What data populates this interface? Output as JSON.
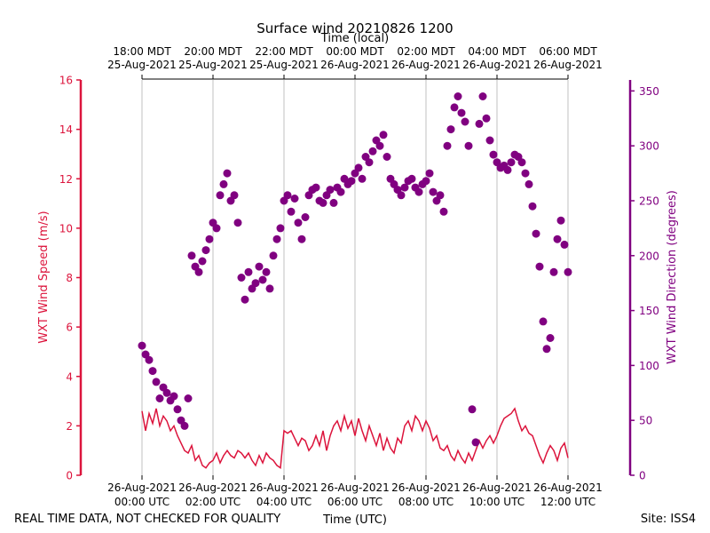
{
  "chart_data": {
    "type": "line+scatter",
    "title": "Surface wind 20210826 1200",
    "top_axis_label": "Time (local)",
    "bottom_axis_label": "Time (UTC)",
    "left_axis_label": "WXT Wind Speed (m/s)",
    "right_axis_label": "WXT Wind Direction (degrees)",
    "footer_left": "REAL TIME DATA, NOT CHECKED FOR QUALITY",
    "footer_right": "Site: ISS4",
    "x_range_hours": [
      0,
      12
    ],
    "ylim_left": [
      0,
      16
    ],
    "ylim_right": [
      0,
      360
    ],
    "left_ticks": [
      "0",
      "2",
      "4",
      "6",
      "8",
      "10",
      "12",
      "14",
      "16"
    ],
    "right_ticks": [
      "0",
      "50",
      "100",
      "150",
      "200",
      "250",
      "300",
      "350"
    ],
    "bottom_ticks": [
      {
        "hour": 0,
        "line1": "26-Aug-2021",
        "line2": "00:00 UTC"
      },
      {
        "hour": 2,
        "line1": "26-Aug-2021",
        "line2": "02:00 UTC"
      },
      {
        "hour": 4,
        "line1": "26-Aug-2021",
        "line2": "04:00 UTC"
      },
      {
        "hour": 6,
        "line1": "26-Aug-2021",
        "line2": "06:00 UTC"
      },
      {
        "hour": 8,
        "line1": "26-Aug-2021",
        "line2": "08:00 UTC"
      },
      {
        "hour": 10,
        "line1": "26-Aug-2021",
        "line2": "10:00 UTC"
      },
      {
        "hour": 12,
        "line1": "26-Aug-2021",
        "line2": "12:00 UTC"
      }
    ],
    "top_ticks": [
      {
        "hour": 0,
        "line1": "18:00 MDT",
        "line2": "25-Aug-2021"
      },
      {
        "hour": 2,
        "line1": "20:00 MDT",
        "line2": "25-Aug-2021"
      },
      {
        "hour": 4,
        "line1": "22:00 MDT",
        "line2": "25-Aug-2021"
      },
      {
        "hour": 6,
        "line1": "00:00 MDT",
        "line2": "26-Aug-2021"
      },
      {
        "hour": 8,
        "line1": "02:00 MDT",
        "line2": "26-Aug-2021"
      },
      {
        "hour": 10,
        "line1": "04:00 MDT",
        "line2": "26-Aug-2021"
      },
      {
        "hour": 12,
        "line1": "06:00 MDT",
        "line2": "26-Aug-2021"
      }
    ],
    "colors": {
      "speed": "#dc143c",
      "direction": "#800080",
      "grid": "#b0b0b0"
    },
    "series": [
      {
        "name": "WXT Wind Speed (m/s)",
        "axis": "left",
        "kind": "line",
        "x_hours": [
          0.0,
          0.1,
          0.2,
          0.3,
          0.4,
          0.5,
          0.6,
          0.7,
          0.8,
          0.9,
          1.0,
          1.1,
          1.2,
          1.3,
          1.4,
          1.5,
          1.6,
          1.7,
          1.8,
          1.9,
          2.0,
          2.1,
          2.2,
          2.3,
          2.4,
          2.5,
          2.6,
          2.7,
          2.8,
          2.9,
          3.0,
          3.1,
          3.2,
          3.3,
          3.4,
          3.5,
          3.6,
          3.7,
          3.8,
          3.9,
          4.0,
          4.1,
          4.2,
          4.3,
          4.4,
          4.5,
          4.6,
          4.7,
          4.8,
          4.9,
          5.0,
          5.1,
          5.2,
          5.3,
          5.4,
          5.5,
          5.6,
          5.7,
          5.8,
          5.9,
          6.0,
          6.1,
          6.2,
          6.3,
          6.4,
          6.5,
          6.6,
          6.7,
          6.8,
          6.9,
          7.0,
          7.1,
          7.2,
          7.3,
          7.4,
          7.5,
          7.6,
          7.7,
          7.8,
          7.9,
          8.0,
          8.1,
          8.2,
          8.3,
          8.4,
          8.5,
          8.6,
          8.7,
          8.8,
          8.9,
          9.0,
          9.1,
          9.2,
          9.3,
          9.4,
          9.5,
          9.6,
          9.7,
          9.8,
          9.9,
          10.0,
          10.1,
          10.2,
          10.3,
          10.4,
          10.5,
          10.6,
          10.7,
          10.8,
          10.9,
          11.0,
          11.1,
          11.2,
          11.3,
          11.4,
          11.5,
          11.6,
          11.7,
          11.8,
          11.9,
          12.0
        ],
        "values": [
          2.6,
          1.8,
          2.5,
          2.1,
          2.7,
          2.0,
          2.4,
          2.2,
          1.8,
          2.0,
          1.6,
          1.3,
          1.0,
          0.9,
          1.2,
          0.6,
          0.8,
          0.4,
          0.3,
          0.5,
          0.6,
          0.9,
          0.5,
          0.8,
          1.0,
          0.8,
          0.7,
          1.0,
          0.9,
          0.7,
          0.9,
          0.6,
          0.4,
          0.8,
          0.5,
          0.9,
          0.7,
          0.6,
          0.4,
          0.3,
          1.8,
          1.7,
          1.8,
          1.5,
          1.2,
          1.5,
          1.4,
          1.0,
          1.2,
          1.6,
          1.2,
          1.8,
          1.0,
          1.6,
          2.0,
          2.2,
          1.8,
          2.4,
          1.9,
          2.2,
          1.6,
          2.3,
          1.8,
          1.4,
          2.0,
          1.6,
          1.2,
          1.7,
          1.0,
          1.5,
          1.1,
          0.9,
          1.5,
          1.3,
          2.0,
          2.2,
          1.8,
          2.4,
          2.2,
          1.8,
          2.2,
          1.9,
          1.4,
          1.6,
          1.1,
          1.0,
          1.2,
          0.8,
          0.6,
          1.0,
          0.7,
          0.5,
          0.9,
          0.6,
          1.0,
          1.4,
          1.1,
          1.4,
          1.6,
          1.3,
          1.6,
          2.0,
          2.3,
          2.4,
          2.5,
          2.7,
          2.2,
          1.8,
          2.0,
          1.7,
          1.6,
          1.2,
          0.8,
          0.5,
          0.9,
          1.2,
          1.0,
          0.6,
          1.1,
          1.3,
          0.7
        ]
      },
      {
        "name": "WXT Wind Direction (degrees)",
        "axis": "right",
        "kind": "scatter",
        "x_hours": [
          0.0,
          0.1,
          0.2,
          0.3,
          0.4,
          0.5,
          0.6,
          0.7,
          0.8,
          0.9,
          1.0,
          1.1,
          1.2,
          1.3,
          1.4,
          1.5,
          1.6,
          1.7,
          1.8,
          1.9,
          2.0,
          2.1,
          2.2,
          2.3,
          2.4,
          2.5,
          2.6,
          2.7,
          2.8,
          2.9,
          3.0,
          3.1,
          3.2,
          3.3,
          3.4,
          3.5,
          3.6,
          3.7,
          3.8,
          3.9,
          4.0,
          4.1,
          4.2,
          4.3,
          4.4,
          4.5,
          4.6,
          4.7,
          4.8,
          4.9,
          5.0,
          5.1,
          5.2,
          5.3,
          5.4,
          5.5,
          5.6,
          5.7,
          5.8,
          5.9,
          6.0,
          6.1,
          6.2,
          6.3,
          6.4,
          6.5,
          6.6,
          6.7,
          6.8,
          6.9,
          7.0,
          7.1,
          7.2,
          7.3,
          7.4,
          7.5,
          7.6,
          7.7,
          7.8,
          7.9,
          8.0,
          8.1,
          8.2,
          8.3,
          8.4,
          8.5,
          8.6,
          8.7,
          8.8,
          8.9,
          9.0,
          9.1,
          9.2,
          9.3,
          9.4,
          9.5,
          9.6,
          9.7,
          9.8,
          9.9,
          10.0,
          10.1,
          10.2,
          10.3,
          10.4,
          10.5,
          10.6,
          10.7,
          10.8,
          10.9,
          11.0,
          11.1,
          11.2,
          11.3,
          11.4,
          11.5,
          11.6,
          11.7,
          11.8,
          11.9,
          12.0
        ],
        "values": [
          118,
          110,
          105,
          95,
          85,
          70,
          80,
          75,
          68,
          72,
          60,
          50,
          45,
          70,
          200,
          190,
          185,
          195,
          205,
          215,
          230,
          225,
          255,
          265,
          275,
          250,
          255,
          230,
          180,
          160,
          185,
          170,
          175,
          190,
          178,
          185,
          170,
          200,
          215,
          225,
          250,
          255,
          240,
          252,
          230,
          215,
          235,
          255,
          260,
          262,
          250,
          248,
          255,
          260,
          248,
          262,
          258,
          270,
          265,
          268,
          275,
          280,
          270,
          290,
          285,
          295,
          305,
          300,
          310,
          290,
          270,
          265,
          260,
          255,
          262,
          268,
          270,
          262,
          258,
          265,
          268,
          275,
          258,
          250,
          255,
          240,
          300,
          315,
          335,
          345,
          330,
          322,
          300,
          60,
          30,
          320,
          345,
          325,
          305,
          292,
          285,
          280,
          282,
          278,
          285,
          292,
          290,
          285,
          275,
          265,
          245,
          220,
          190,
          140,
          115,
          125,
          185,
          215,
          232,
          210,
          185
        ]
      }
    ]
  }
}
